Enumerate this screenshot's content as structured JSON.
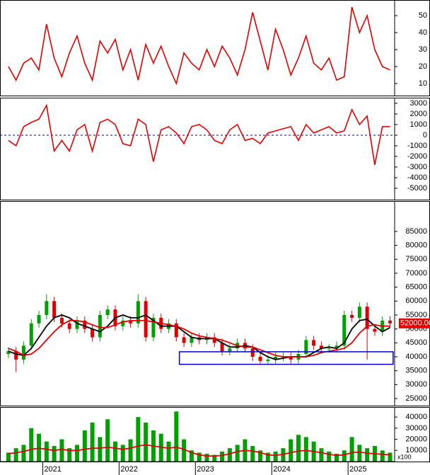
{
  "chart_data": [
    {
      "type": "line",
      "x": [
        2020.55,
        2020.65,
        2020.75,
        2020.85,
        2020.95,
        2021.05,
        2021.15,
        2021.25,
        2021.35,
        2021.45,
        2021.55,
        2021.65,
        2021.75,
        2021.85,
        2021.95,
        2022.05,
        2022.15,
        2022.25,
        2022.35,
        2022.45,
        2022.55,
        2022.65,
        2022.75,
        2022.85,
        2022.95,
        2023.05,
        2023.15,
        2023.25,
        2023.35,
        2023.45,
        2023.55,
        2023.65,
        2023.75,
        2023.85,
        2023.95,
        2024.05,
        2024.15,
        2024.25,
        2024.35,
        2024.45,
        2024.55,
        2024.65,
        2024.75,
        2024.85,
        2024.95,
        2025.05,
        2025.15,
        2025.25,
        2025.35,
        2025.45,
        2025.55
      ],
      "xlim": [
        2020.44,
        2025.61
      ],
      "ylim": [
        2.9,
        59.2
      ],
      "yticks": [
        10,
        20,
        30,
        40,
        50
      ],
      "series": [
        {
          "color": "#e00000",
          "values": [
            20,
            12,
            22,
            25,
            18,
            45,
            25,
            14,
            28,
            38,
            22,
            12,
            35,
            28,
            36,
            18,
            30,
            12,
            33,
            22,
            32,
            20,
            10,
            28,
            22,
            18,
            30,
            20,
            32,
            25,
            15,
            30,
            52,
            35,
            18,
            42,
            30,
            15,
            25,
            38,
            22,
            18,
            25,
            12,
            14,
            55,
            40,
            50,
            30,
            20,
            18
          ]
        }
      ]
    },
    {
      "type": "line",
      "x": [
        2020.55,
        2020.65,
        2020.75,
        2020.85,
        2020.95,
        2021.05,
        2021.15,
        2021.25,
        2021.35,
        2021.45,
        2021.55,
        2021.65,
        2021.75,
        2021.85,
        2021.95,
        2022.05,
        2022.15,
        2022.25,
        2022.35,
        2022.45,
        2022.55,
        2022.65,
        2022.75,
        2022.85,
        2022.95,
        2023.05,
        2023.15,
        2023.25,
        2023.35,
        2023.45,
        2023.55,
        2023.65,
        2023.75,
        2023.85,
        2023.95,
        2024.05,
        2024.15,
        2024.25,
        2024.35,
        2024.45,
        2024.55,
        2024.65,
        2024.75,
        2024.85,
        2024.95,
        2025.05,
        2025.15,
        2025.25,
        2025.35,
        2025.45,
        2025.55
      ],
      "xlim": [
        2020.44,
        2025.61
      ],
      "ylim": [
        -6070,
        3530
      ],
      "yticks": [
        3000,
        2000,
        1000,
        0,
        -1000,
        -2000,
        -3000,
        -4000,
        -5000
      ],
      "hline": 0,
      "series": [
        {
          "color": "#e00000",
          "values": [
            -500,
            -1000,
            800,
            1200,
            1500,
            2800,
            -1500,
            -500,
            -1500,
            500,
            1000,
            -1500,
            1200,
            1500,
            1000,
            -800,
            -1000,
            1500,
            1000,
            -2500,
            500,
            800,
            200,
            -800,
            800,
            1000,
            500,
            -500,
            -800,
            500,
            1000,
            -500,
            -300,
            -800,
            200,
            400,
            600,
            800,
            -500,
            1000,
            200,
            500,
            800,
            200,
            400,
            2400,
            1000,
            1800,
            -2800,
            800,
            800
          ]
        }
      ]
    },
    {
      "type": "candlestick",
      "x": [
        2020.55,
        2020.65,
        2020.75,
        2020.85,
        2020.95,
        2021.05,
        2021.15,
        2021.25,
        2021.35,
        2021.45,
        2021.55,
        2021.65,
        2021.75,
        2021.85,
        2021.95,
        2022.05,
        2022.15,
        2022.25,
        2022.35,
        2022.45,
        2022.55,
        2022.65,
        2022.75,
        2022.85,
        2022.95,
        2023.05,
        2023.15,
        2023.25,
        2023.35,
        2023.45,
        2023.55,
        2023.65,
        2023.75,
        2023.85,
        2023.95,
        2024.05,
        2024.15,
        2024.25,
        2024.35,
        2024.45,
        2024.55,
        2024.65,
        2024.75,
        2024.85,
        2024.95,
        2025.05,
        2025.15,
        2025.25,
        2025.35,
        2025.45,
        2025.55
      ],
      "xlim": [
        2020.44,
        2025.61
      ],
      "ylim": [
        22460,
        95930
      ],
      "yticks": [
        85000,
        80000,
        75000,
        70000,
        65000,
        60000,
        55000,
        50000,
        45000,
        40000,
        35000,
        30000,
        25000
      ],
      "up_color": "#00a000",
      "down_color": "#e00000",
      "open": [
        41000,
        42000,
        39000,
        44000,
        52000,
        55000,
        60000,
        54000,
        52000,
        50000,
        53000,
        50000,
        47000,
        55000,
        57000,
        51000,
        53000,
        52000,
        60000,
        47000,
        54000,
        50000,
        52000,
        47000,
        45000,
        47000,
        46000,
        47000,
        45000,
        42000,
        43000,
        45000,
        43000,
        40000,
        38500,
        39000,
        40000,
        40000,
        39000,
        41000,
        46000,
        44000,
        43000,
        43000,
        44000,
        55000,
        54000,
        58000,
        50000,
        49000,
        53000
      ],
      "high": [
        43500,
        43500,
        45500,
        53500,
        56500,
        62500,
        61500,
        55500,
        53500,
        54500,
        54500,
        51500,
        56500,
        58500,
        58500,
        54500,
        54500,
        62500,
        61500,
        55500,
        55500,
        53500,
        53500,
        48500,
        48500,
        48500,
        48500,
        48500,
        46500,
        44500,
        46500,
        46500,
        44500,
        41500,
        40500,
        41500,
        41500,
        41500,
        42500,
        47500,
        47500,
        45500,
        44500,
        45500,
        56500,
        56500,
        59500,
        59500,
        51500,
        54500,
        54500
      ],
      "low": [
        39500,
        34500,
        37500,
        42500,
        50500,
        53500,
        52500,
        50500,
        48500,
        48500,
        48500,
        45500,
        45500,
        53500,
        49500,
        49500,
        50500,
        50500,
        45500,
        45500,
        48500,
        48500,
        45500,
        43500,
        43500,
        44500,
        44500,
        43500,
        40500,
        40500,
        41500,
        41500,
        38500,
        37000,
        37000,
        37500,
        38500,
        37500,
        37500,
        39500,
        42500,
        41500,
        41500,
        41500,
        42500,
        52500,
        52500,
        39000,
        47500,
        47500,
        50500
      ],
      "close": [
        42000,
        39000,
        44000,
        52000,
        55000,
        60000,
        54000,
        52000,
        50000,
        53000,
        50000,
        47000,
        55000,
        57000,
        51000,
        53000,
        52000,
        60000,
        47000,
        54000,
        50000,
        52000,
        47000,
        45000,
        47000,
        46000,
        47000,
        45000,
        42000,
        43000,
        45000,
        43000,
        40000,
        38500,
        39000,
        40000,
        40000,
        39000,
        41000,
        46000,
        44000,
        43000,
        43000,
        44000,
        55000,
        54000,
        58000,
        50000,
        49000,
        53000,
        52000
      ],
      "series": [
        {
          "color": "#000000",
          "values": [
            42000,
            41000,
            40500,
            43000,
            47000,
            51000,
            54000,
            55000,
            54000,
            52000,
            51000,
            50000,
            49000,
            51000,
            54000,
            55000,
            54000,
            54000,
            55000,
            53000,
            51000,
            51000,
            51000,
            49000,
            47000,
            46500,
            46500,
            46500,
            45000,
            43500,
            43500,
            44000,
            43500,
            41500,
            40000,
            39000,
            39500,
            40000,
            40000,
            40000,
            41500,
            43000,
            43500,
            43000,
            45000,
            50000,
            53000,
            53500,
            51000,
            49000,
            50500
          ]
        },
        {
          "color": "#e00000",
          "values": [
            43000,
            42000,
            40500,
            41000,
            43000,
            46000,
            49000,
            51500,
            53000,
            53000,
            52500,
            51500,
            50500,
            50500,
            51500,
            52500,
            53000,
            53000,
            53000,
            52500,
            52000,
            51500,
            51000,
            50000,
            48500,
            47500,
            47000,
            46500,
            46000,
            45000,
            44000,
            43500,
            43500,
            42500,
            41500,
            40500,
            40000,
            40000,
            40000,
            40000,
            40500,
            41500,
            42000,
            42500,
            43000,
            45000,
            48500,
            51000,
            51500,
            51000,
            51000
          ]
        }
      ],
      "box": {
        "x": [
          2022.79,
          2025.59
        ],
        "y": [
          37300,
          41800
        ],
        "color": "#0000d0"
      },
      "last_label": "52000.00"
    },
    {
      "type": "bar",
      "x": [
        2020.55,
        2020.65,
        2020.75,
        2020.85,
        2020.95,
        2021.05,
        2021.15,
        2021.25,
        2021.35,
        2021.45,
        2021.55,
        2021.65,
        2021.75,
        2021.85,
        2021.95,
        2022.05,
        2022.15,
        2022.25,
        2022.35,
        2022.45,
        2022.55,
        2022.65,
        2022.75,
        2022.85,
        2022.95,
        2023.05,
        2023.15,
        2023.25,
        2023.35,
        2023.45,
        2023.55,
        2023.65,
        2023.75,
        2023.85,
        2023.95,
        2024.05,
        2024.15,
        2024.25,
        2024.35,
        2024.45,
        2024.55,
        2024.65,
        2024.75,
        2024.85,
        2024.95,
        2025.05,
        2025.15,
        2025.25,
        2025.35,
        2025.45,
        2025.55
      ],
      "xlim": [
        2020.44,
        2025.61
      ],
      "ylim": [
        0,
        49000
      ],
      "yticks": [
        40000,
        30000,
        20000,
        10000
      ],
      "xticks": [
        2021,
        2022,
        2023,
        2024,
        2025
      ],
      "unit": "x100",
      "color": "#00a000",
      "values": [
        8000,
        12000,
        15000,
        30000,
        25000,
        18000,
        14000,
        20000,
        12000,
        15000,
        28000,
        35000,
        22000,
        38000,
        18000,
        15000,
        20000,
        40000,
        35000,
        28000,
        25000,
        18000,
        45000,
        20000,
        10000,
        8000,
        7000,
        6000,
        9000,
        12000,
        15000,
        20000,
        14000,
        10000,
        8000,
        9000,
        12000,
        20000,
        24000,
        22000,
        18000,
        12000,
        9000,
        7000,
        10000,
        22000,
        15000,
        12000,
        14000,
        10000,
        8000
      ],
      "series": [
        {
          "color": "#e00000",
          "values": [
            7000,
            8000,
            9000,
            11000,
            12000,
            11000,
            10000,
            11000,
            10000,
            10000,
            11000,
            12000,
            12000,
            13000,
            12000,
            11000,
            12000,
            14000,
            15000,
            14000,
            13000,
            12000,
            13000,
            11000,
            8000,
            6000,
            5000,
            5000,
            5500,
            7000,
            9000,
            10000,
            9500,
            8000,
            6000,
            5500,
            6500,
            8000,
            9500,
            10000,
            9000,
            8000,
            6500,
            5500,
            6000,
            8000,
            8500,
            7500,
            7000,
            6500,
            6000
          ]
        }
      ]
    }
  ]
}
